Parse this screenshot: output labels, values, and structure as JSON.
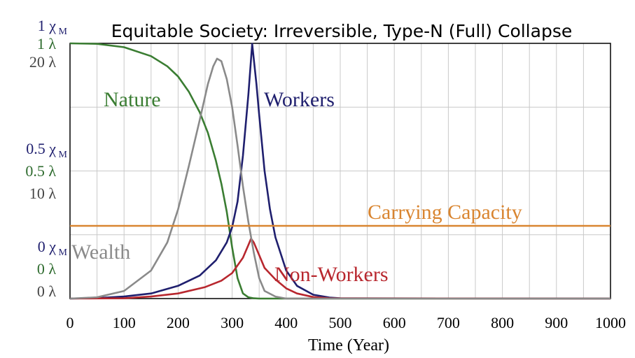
{
  "chart_data": {
    "type": "line",
    "title": "Equitable Society: Irreversible, Type-N (Full) Collapse",
    "xlabel": "Time (Year)",
    "xlim": [
      0,
      1000
    ],
    "x_ticks": [
      "0",
      "100",
      "200",
      "300",
      "400",
      "500",
      "600",
      "700",
      "800",
      "900",
      "1000"
    ],
    "grid": true,
    "y_axis_labels": [
      {
        "level": 1.0,
        "rows": [
          {
            "text": "1 χ",
            "sub": "M",
            "color": "#1f1f6e"
          },
          {
            "text": "1 λ",
            "color": "#2e6b2e"
          },
          {
            "text": "20 λ",
            "color": "#444444"
          }
        ]
      },
      {
        "level": 0.5,
        "rows": [
          {
            "text": "0.5 χ",
            "sub": "M",
            "color": "#1f1f6e"
          },
          {
            "text": "0.5 λ",
            "color": "#2e6b2e"
          },
          {
            "text": "10  λ",
            "color": "#444444"
          }
        ]
      },
      {
        "level": 0.0,
        "rows": [
          {
            "text": "0 χ",
            "sub": "M",
            "color": "#1f1f6e"
          },
          {
            "text": "0 λ",
            "color": "#2e6b2e"
          },
          {
            "text": "0  λ",
            "color": "#444444"
          }
        ]
      }
    ],
    "series": [
      {
        "name": "Nature",
        "color": "#3a7d32",
        "x": [
          0,
          50,
          100,
          150,
          180,
          200,
          220,
          240,
          255,
          270,
          280,
          290,
          300,
          310,
          320,
          330,
          340,
          350,
          1000
        ],
        "y": [
          1.0,
          0.998,
          0.985,
          0.95,
          0.91,
          0.87,
          0.81,
          0.73,
          0.65,
          0.54,
          0.45,
          0.34,
          0.2,
          0.08,
          0.02,
          0.005,
          0.001,
          0.0,
          0.0
        ]
      },
      {
        "name": "Workers",
        "color": "#1f1f6e",
        "x": [
          0,
          50,
          100,
          150,
          200,
          240,
          270,
          290,
          300,
          310,
          320,
          330,
          337,
          345,
          350,
          360,
          370,
          380,
          400,
          420,
          450,
          480,
          500,
          1000
        ],
        "y": [
          0.0,
          0.002,
          0.008,
          0.02,
          0.05,
          0.09,
          0.15,
          0.22,
          0.28,
          0.38,
          0.56,
          0.8,
          0.998,
          0.84,
          0.72,
          0.5,
          0.35,
          0.24,
          0.11,
          0.05,
          0.015,
          0.004,
          0.001,
          0.0
        ]
      },
      {
        "name": "Non-Workers",
        "color": "#b8272e",
        "x": [
          0,
          100,
          150,
          200,
          250,
          280,
          300,
          320,
          330,
          335,
          340,
          350,
          360,
          380,
          400,
          420,
          450,
          480,
          1000
        ],
        "y": [
          0.0,
          0.001,
          0.008,
          0.02,
          0.045,
          0.07,
          0.1,
          0.16,
          0.21,
          0.235,
          0.22,
          0.17,
          0.12,
          0.075,
          0.04,
          0.02,
          0.006,
          0.001,
          0.0
        ]
      },
      {
        "name": "Wealth",
        "color": "#8a8a8a",
        "x": [
          0,
          50,
          100,
          150,
          180,
          200,
          220,
          240,
          255,
          265,
          272,
          280,
          290,
          300,
          310,
          320,
          330,
          340,
          350,
          360,
          380,
          400,
          1000
        ],
        "y": [
          0.0,
          0.005,
          0.03,
          0.11,
          0.22,
          0.35,
          0.52,
          0.7,
          0.84,
          0.91,
          0.94,
          0.93,
          0.86,
          0.75,
          0.6,
          0.44,
          0.3,
          0.18,
          0.08,
          0.03,
          0.008,
          0.0,
          0.0
        ]
      },
      {
        "name": "Carrying Capacity",
        "color": "#d98530",
        "x": [
          0,
          1000
        ],
        "y": [
          0.285,
          0.285
        ]
      }
    ]
  }
}
